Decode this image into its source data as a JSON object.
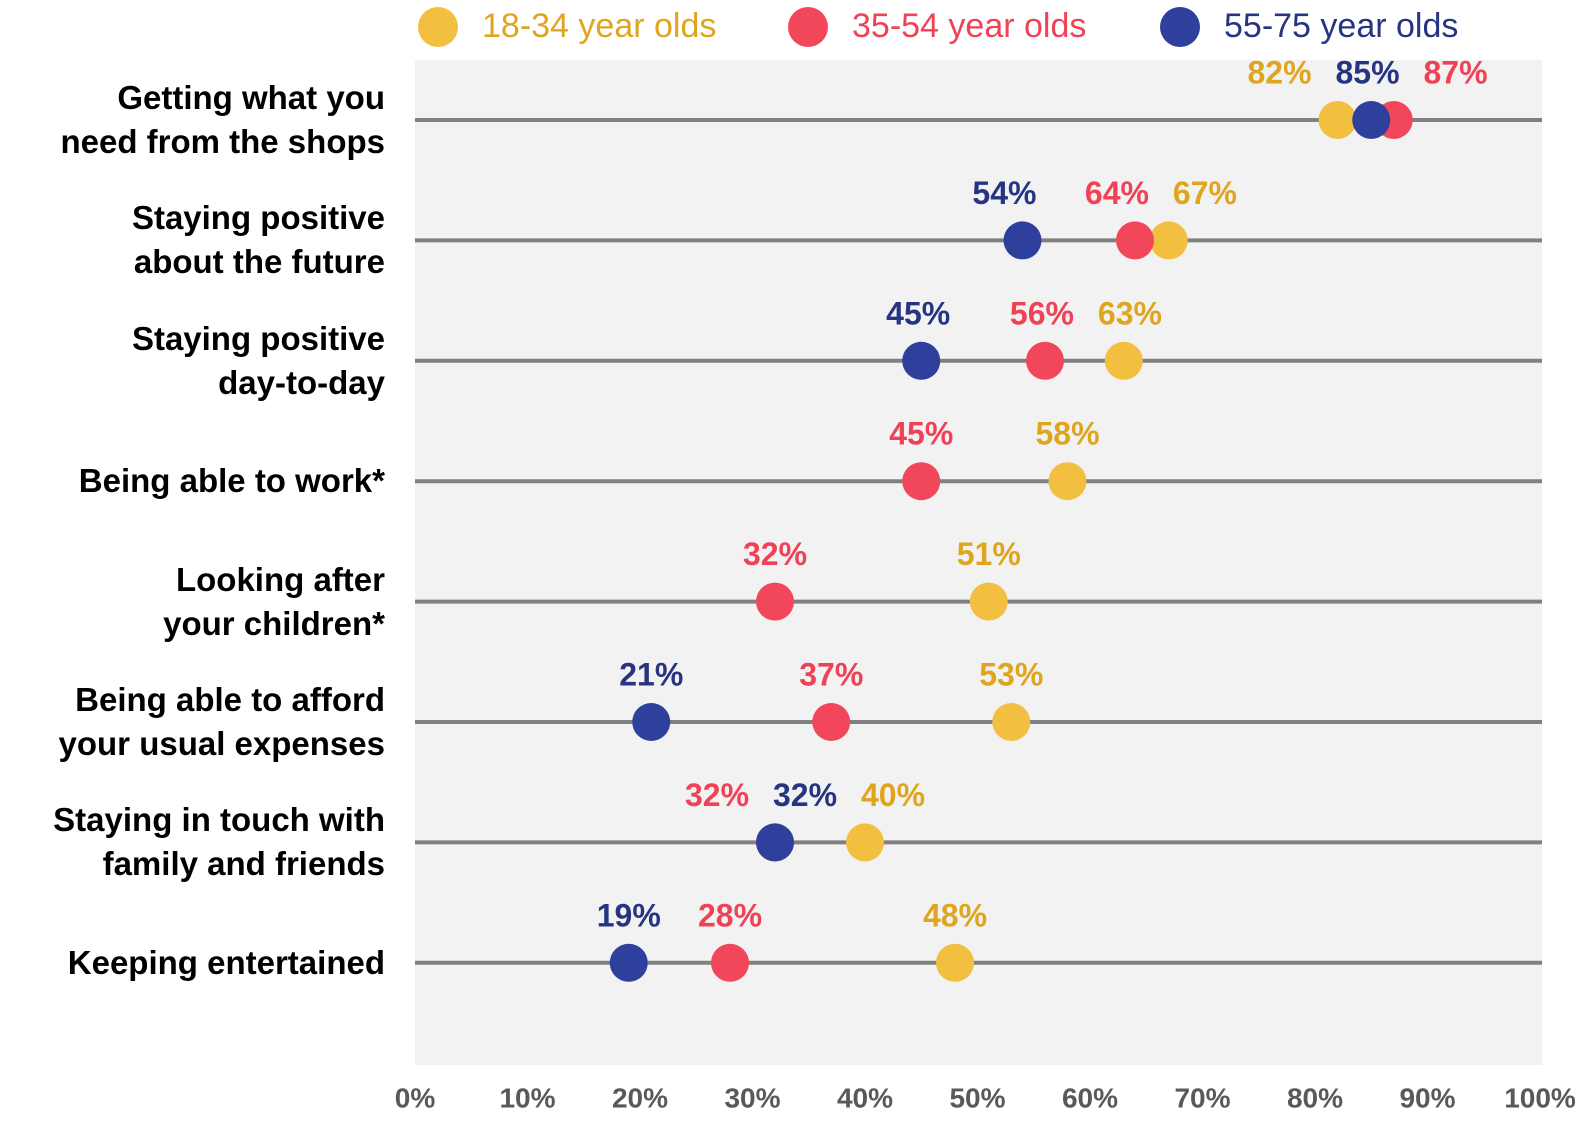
{
  "chart_data": {
    "type": "dot",
    "categories": [
      "Getting what you\nneed from the shops",
      "Staying positive\nabout the future",
      "Staying positive\nday-to-day",
      "Being able to work*",
      "Looking after\nyour children*",
      "Being able to afford\nyour usual expenses",
      "Staying in touch with\nfamily and friends",
      "Keeping entertained"
    ],
    "series": [
      {
        "name": "18-34 year olds",
        "color": "#f2bf40",
        "label_color": "#e0a51e",
        "values": [
          82,
          67,
          63,
          58,
          51,
          53,
          40,
          48
        ],
        "value_labels": [
          "82%",
          "67%",
          "63%",
          "58%",
          "51%",
          "53%",
          "40%",
          "48%"
        ]
      },
      {
        "name": "35-54 year olds",
        "color": "#f2475a",
        "label_color": "#ef4256",
        "values": [
          87,
          64,
          56,
          45,
          32,
          37,
          32,
          28
        ],
        "value_labels": [
          "87%",
          "64%",
          "56%",
          "45%",
          "32%",
          "37%",
          "32%",
          "28%"
        ]
      },
      {
        "name": "55-75 year olds",
        "color": "#2e3f9c",
        "label_color": "#263482",
        "values": [
          85,
          54,
          45,
          null,
          null,
          21,
          32,
          19
        ],
        "value_labels": [
          "85%",
          "54%",
          "45%",
          null,
          null,
          "21%",
          "32%",
          "19%"
        ]
      }
    ],
    "xlim": [
      0,
      100
    ],
    "xticks": [
      {
        "value": 0,
        "label": "0%"
      },
      {
        "value": 10,
        "label": "10%"
      },
      {
        "value": 20,
        "label": "20%"
      },
      {
        "value": 30,
        "label": "30%"
      },
      {
        "value": 40,
        "label": "40%"
      },
      {
        "value": 50,
        "label": "50%"
      },
      {
        "value": 60,
        "label": "60%"
      },
      {
        "value": 70,
        "label": "70%"
      },
      {
        "value": 80,
        "label": "80%"
      },
      {
        "value": 90,
        "label": "90%"
      },
      {
        "value": 100,
        "label": "100%"
      }
    ]
  }
}
